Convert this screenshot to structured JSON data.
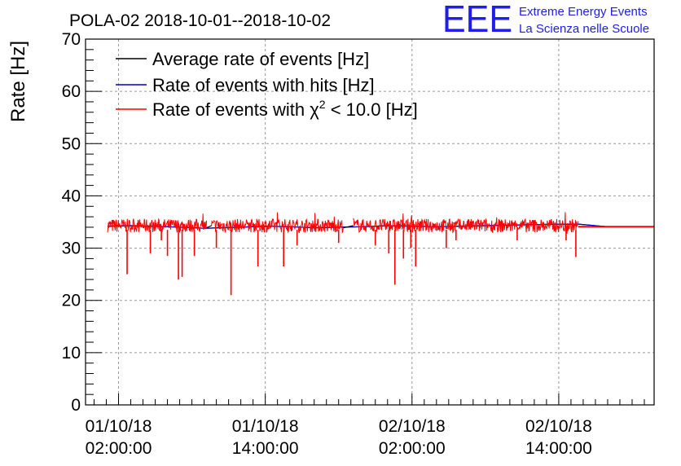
{
  "chart_data": {
    "type": "line",
    "title": "POLA-02 2018-10-01--2018-10-02",
    "ylabel": "Rate [Hz]",
    "xlabel": "",
    "ylim": [
      0,
      70
    ],
    "yticks": [
      0,
      10,
      20,
      30,
      40,
      50,
      60,
      70
    ],
    "x_unit": "hours since 2018-10-01 00:00:00",
    "xlim": [
      -0.7,
      45.8
    ],
    "xticks": [
      {
        "x": 2,
        "line1": "01/10/18",
        "line2": "02:00:00"
      },
      {
        "x": 14,
        "line1": "01/10/18",
        "line2": "14:00:00"
      },
      {
        "x": 26,
        "line1": "02/10/18",
        "line2": "02:00:00"
      },
      {
        "x": 38,
        "line1": "02/10/18",
        "line2": "14:00:00"
      }
    ],
    "grid": true,
    "legend_position": "top-left",
    "series": [
      {
        "name": "Average rate of events [Hz]",
        "color": "#000000",
        "x": [
          1.1,
          3,
          6,
          9,
          12,
          14,
          16,
          18,
          20,
          22,
          24,
          26,
          28,
          30,
          32,
          34,
          36,
          38,
          39.6,
          42,
          45.8
        ],
        "y": [
          34.2,
          34.3,
          34.1,
          33.8,
          34.0,
          34.2,
          34.1,
          33.9,
          34.0,
          34.1,
          34.3,
          34.2,
          34.1,
          34.2,
          34.3,
          34.4,
          34.5,
          34.6,
          34.6,
          34.1,
          34.1
        ]
      },
      {
        "name": "Rate of events with hits [Hz]",
        "color": "#0000cc",
        "x": [
          1.1,
          3,
          6,
          9,
          12,
          14,
          16,
          18,
          20,
          22,
          24,
          26,
          28,
          30,
          32,
          34,
          36,
          38,
          39.6,
          42,
          45.8
        ],
        "y": [
          34.2,
          34.3,
          34.1,
          33.8,
          34.0,
          34.2,
          34.1,
          33.9,
          34.0,
          34.1,
          34.3,
          34.2,
          34.1,
          34.2,
          34.3,
          34.4,
          34.5,
          34.6,
          34.6,
          34.1,
          34.1
        ]
      },
      {
        "name": "Rate of events with χ² < 10.0 [Hz]",
        "legend_prefix": "Rate of events with ",
        "legend_chi": "χ",
        "legend_sup": "2",
        "legend_suffix": " < 10.0 [Hz]",
        "color": "#ff0000",
        "band": {
          "x_start": 1.1,
          "x_end": 39.6,
          "center": 34.3,
          "amplitude": 1.3,
          "gaps": [
            [
              9.2,
              9.6
            ],
            [
              20.4,
              21.2
            ]
          ]
        },
        "dips": [
          {
            "x": 2.7,
            "y": 25.0
          },
          {
            "x": 4.6,
            "y": 29.0
          },
          {
            "x": 5.5,
            "y": 31.5
          },
          {
            "x": 6.0,
            "y": 28.5
          },
          {
            "x": 6.9,
            "y": 24.0
          },
          {
            "x": 7.2,
            "y": 24.5
          },
          {
            "x": 8.2,
            "y": 28.5
          },
          {
            "x": 10.0,
            "y": 30.0
          },
          {
            "x": 11.2,
            "y": 21.0
          },
          {
            "x": 13.4,
            "y": 26.5
          },
          {
            "x": 15.5,
            "y": 26.5
          },
          {
            "x": 16.6,
            "y": 30.5
          },
          {
            "x": 20.0,
            "y": 31.0
          },
          {
            "x": 23.0,
            "y": 30.5
          },
          {
            "x": 24.1,
            "y": 29.0
          },
          {
            "x": 24.6,
            "y": 23.0
          },
          {
            "x": 25.3,
            "y": 28.0
          },
          {
            "x": 25.9,
            "y": 30.0
          },
          {
            "x": 26.3,
            "y": 26.5
          },
          {
            "x": 28.8,
            "y": 30.0
          },
          {
            "x": 29.6,
            "y": 31.5
          },
          {
            "x": 34.6,
            "y": 31.5
          },
          {
            "x": 38.6,
            "y": 31.5
          },
          {
            "x": 39.4,
            "y": 28.3
          }
        ],
        "tail": {
          "x_start": 39.6,
          "x_end": 45.8,
          "y": 34.1
        }
      }
    ]
  },
  "brand": {
    "logo": "EEE",
    "line1": "Extreme Energy Events",
    "line2": "La Scienza nelle Scuole"
  },
  "colors": {
    "brand": "#1d1df0",
    "grid": "#9a9a9a"
  }
}
